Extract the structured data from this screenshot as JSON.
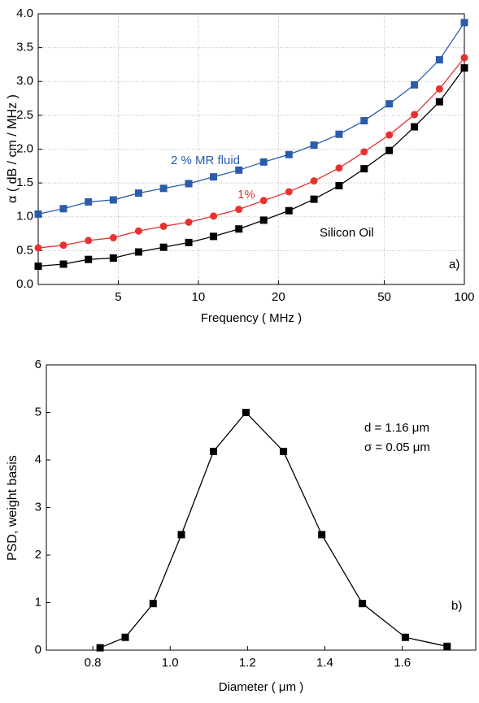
{
  "chart_data": [
    {
      "type": "line",
      "xlabel": "Frequency ( MHz )",
      "ylabel": "α ( dB / cm / MHz )",
      "xlog": true,
      "xlim": [
        2.5,
        100
      ],
      "xticks": [
        5,
        10,
        20,
        50,
        100
      ],
      "ylim": [
        0,
        4
      ],
      "yticks": [
        {
          "value": 0,
          "label": "0.0"
        },
        0.5,
        {
          "value": 1,
          "label": "1.0"
        },
        1.5,
        {
          "value": 2,
          "label": "2.0"
        },
        2.5,
        {
          "value": 3,
          "label": "3.0"
        },
        3.5,
        {
          "value": 4,
          "label": "4.0"
        }
      ],
      "grid": true,
      "x": [
        2.5,
        3.11,
        3.86,
        4.79,
        5.96,
        7.4,
        9.2,
        11.4,
        14.2,
        17.6,
        21.9,
        27.2,
        33.8,
        42,
        52.2,
        64.9,
        80.6,
        100
      ],
      "series": [
        {
          "name": "2 % MR fluid",
          "color": "#2a5caa",
          "marker": "square",
          "values": [
            1.04,
            1.12,
            1.22,
            1.25,
            1.35,
            1.42,
            1.49,
            1.59,
            1.69,
            1.81,
            1.92,
            2.06,
            2.22,
            2.42,
            2.67,
            2.95,
            3.32,
            3.87
          ]
        },
        {
          "name": "1%",
          "color": "#e8312f",
          "marker": "circle",
          "values": [
            0.54,
            0.58,
            0.65,
            0.69,
            0.79,
            0.86,
            0.92,
            1.01,
            1.11,
            1.24,
            1.37,
            1.53,
            1.72,
            1.96,
            2.21,
            2.51,
            2.89,
            3.35
          ]
        },
        {
          "name": "Silicon Oil",
          "color": "#000000",
          "marker": "square",
          "values": [
            0.27,
            0.3,
            0.37,
            0.39,
            0.48,
            0.55,
            0.62,
            0.71,
            0.82,
            0.95,
            1.09,
            1.26,
            1.46,
            1.71,
            1.98,
            2.33,
            2.7,
            3.2
          ]
        }
      ],
      "annotations": [
        "a)"
      ]
    },
    {
      "type": "line",
      "xlabel": "Diameter ( μm )",
      "ylabel": "PSD, weight basis",
      "xlim": [
        0.68,
        1.79
      ],
      "xticks": [
        0.8,
        {
          "value": 1,
          "label": "1.0"
        },
        1.2,
        1.4,
        1.6
      ],
      "ylim": [
        0,
        6
      ],
      "yticks": [
        0,
        1,
        2,
        3,
        4,
        5,
        6
      ],
      "grid": false,
      "x": [
        0.819,
        0.884,
        0.956,
        1.029,
        1.112,
        1.196,
        1.293,
        1.392,
        1.497,
        1.608,
        1.716
      ],
      "series": [
        {
          "color": "#000000",
          "marker": "square",
          "values": [
            0.05,
            0.27,
            0.98,
            2.43,
            4.18,
            5.0,
            4.18,
            2.43,
            0.98,
            0.27,
            0.08
          ]
        }
      ],
      "annotations": [
        "d = 1.16 μm",
        "σ = 0.05 μm",
        "b)"
      ]
    }
  ]
}
